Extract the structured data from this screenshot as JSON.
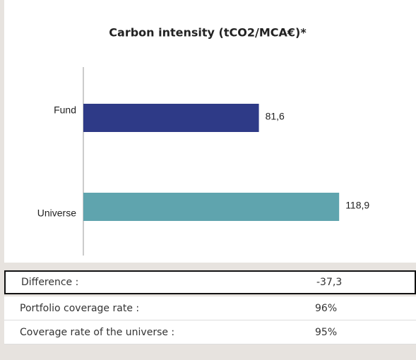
{
  "chart_data": {
    "type": "bar",
    "orientation": "horizontal",
    "title": "Carbon intensity (tCO2/MCA€)*",
    "categories": [
      "Fund",
      "Universe"
    ],
    "values": [
      81.6,
      118.9
    ],
    "value_labels": [
      "81,6",
      "118,9"
    ],
    "colors": [
      "#2e3a87",
      "#5fa4ae"
    ],
    "xlim": [
      0,
      130
    ]
  },
  "table": {
    "rows": [
      [
        "Difference :",
        "-37,3"
      ],
      [
        "Portfolio coverage rate :",
        "96%"
      ],
      [
        "Coverage rate of the universe :",
        "95%"
      ]
    ]
  }
}
